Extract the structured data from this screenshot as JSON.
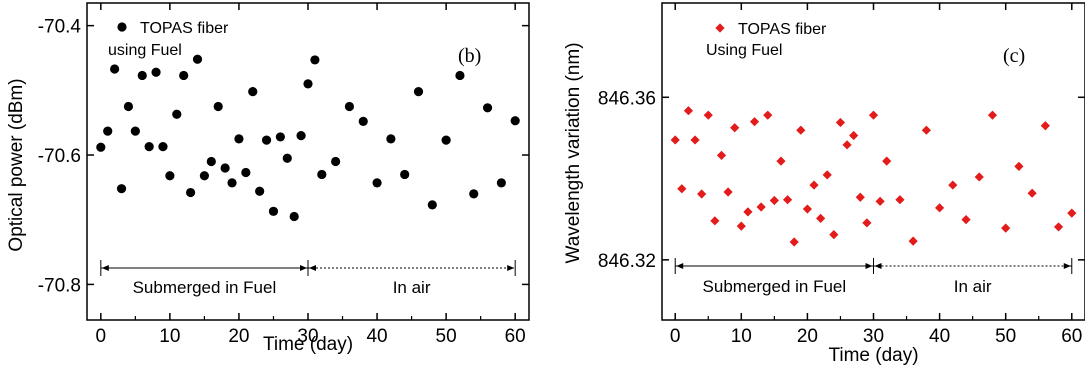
{
  "chart_data": [
    {
      "panel_label": "(b)",
      "type": "scatter",
      "xlabel": "Time (day)",
      "ylabel": "Optical power (dBm)",
      "xlim": [
        -2,
        62
      ],
      "ylim": [
        -70.855,
        -70.365
      ],
      "xticks": [
        0,
        10,
        20,
        30,
        40,
        50,
        60
      ],
      "yticks": [
        -70.4,
        -70.6,
        -70.8
      ],
      "ytick_labels": [
        "-70.4",
        "-70.6",
        "-70.8"
      ],
      "legend": {
        "label": "TOPAS fiber",
        "note": "using Fuel",
        "placement": "top-left"
      },
      "marker": {
        "shape": "circle",
        "color": "#000000"
      },
      "series": [
        {
          "name": "TOPAS fiber",
          "x": [
            0,
            1,
            2,
            3,
            4,
            5,
            6,
            7,
            8,
            9,
            10,
            11,
            12,
            13,
            14,
            15,
            16,
            17,
            18,
            19,
            20,
            21,
            22,
            23,
            24,
            25,
            26,
            27,
            28,
            29,
            30,
            31,
            32,
            34,
            36,
            38,
            40,
            42,
            44,
            46,
            48,
            50,
            52,
            54,
            56,
            58,
            60
          ],
          "y": [
            -70.588,
            -70.563,
            -70.467,
            -70.652,
            -70.525,
            -70.563,
            -70.477,
            -70.587,
            -70.472,
            -70.587,
            -70.632,
            -70.537,
            -70.477,
            -70.658,
            -70.452,
            -70.632,
            -70.61,
            -70.525,
            -70.62,
            -70.643,
            -70.575,
            -70.627,
            -70.502,
            -70.656,
            -70.577,
            -70.687,
            -70.572,
            -70.605,
            -70.695,
            -70.57,
            -70.49,
            -70.453,
            -70.63,
            -70.61,
            -70.525,
            -70.548,
            -70.643,
            -70.575,
            -70.63,
            -70.502,
            -70.677,
            -70.577,
            -70.477,
            -70.66,
            -70.527,
            -70.643,
            -70.547
          ]
        }
      ],
      "annotations": [
        {
          "text": "Submerged in Fuel",
          "x_start": 0,
          "x_end": 30,
          "line_style": "solid"
        },
        {
          "text": "In air",
          "x_start": 30,
          "x_end": 60,
          "line_style": "dotted"
        }
      ]
    },
    {
      "panel_label": "(c)",
      "type": "scatter",
      "xlabel": "Time (day)",
      "ylabel": "Wavelength variation (nm)",
      "xlim": [
        -2,
        62
      ],
      "ylim": [
        846.3052,
        846.3832
      ],
      "xticks": [
        0,
        10,
        20,
        30,
        40,
        50,
        60
      ],
      "yticks": [
        846.32,
        846.36
      ],
      "ytick_labels": [
        "846.32",
        "846.36"
      ],
      "legend": {
        "label": "TOPAS fiber",
        "note": "Using Fuel",
        "placement": "top-left"
      },
      "marker": {
        "shape": "diamond",
        "color": "#e31b1b"
      },
      "series": [
        {
          "name": "TOPAS fiber",
          "x": [
            0,
            1,
            2,
            3,
            4,
            5,
            6,
            7,
            8,
            9,
            10,
            11,
            12,
            13,
            14,
            15,
            16,
            17,
            18,
            19,
            20,
            21,
            22,
            23,
            24,
            25,
            26,
            27,
            28,
            29,
            30,
            31,
            32,
            34,
            36,
            38,
            40,
            42,
            44,
            46,
            48,
            50,
            52,
            54,
            56,
            58,
            60
          ],
          "y": [
            846.3495,
            846.3375,
            846.3567,
            846.3495,
            846.3362,
            846.3556,
            846.3296,
            846.3457,
            846.3367,
            846.3525,
            846.3283,
            846.3318,
            846.354,
            846.333,
            846.3556,
            846.3346,
            846.3443,
            846.3348,
            846.3244,
            846.3519,
            846.3325,
            846.3384,
            846.3302,
            846.3409,
            846.3262,
            846.3538,
            846.3483,
            846.3506,
            846.3354,
            846.3291,
            846.3556,
            846.3344,
            846.3443,
            846.3348,
            846.3246,
            846.3519,
            846.3328,
            846.3384,
            846.3299,
            846.3404,
            846.3556,
            846.3278,
            846.343,
            846.3364,
            846.353,
            846.3281,
            846.3315
          ]
        }
      ],
      "annotations": [
        {
          "text": "Submerged in Fuel",
          "x_start": 0,
          "x_end": 30,
          "line_style": "solid"
        },
        {
          "text": "In air",
          "x_start": 30,
          "x_end": 60,
          "line_style": "dotted"
        }
      ]
    }
  ]
}
